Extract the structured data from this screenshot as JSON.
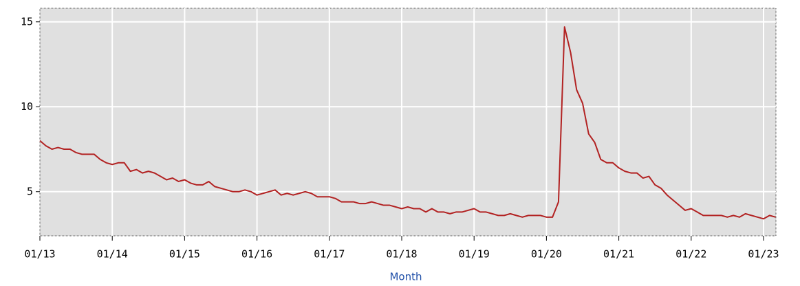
{
  "chart_data": {
    "type": "line",
    "x_label": "Month",
    "categories": [
      "01/13",
      null,
      null,
      null,
      null,
      null,
      null,
      null,
      null,
      null,
      null,
      null,
      "01/14",
      null,
      null,
      null,
      null,
      null,
      null,
      null,
      null,
      null,
      null,
      null,
      "01/15",
      null,
      null,
      null,
      null,
      null,
      null,
      null,
      null,
      null,
      null,
      null,
      "01/16",
      null,
      null,
      null,
      null,
      null,
      null,
      null,
      null,
      null,
      null,
      null,
      "01/17",
      null,
      null,
      null,
      null,
      null,
      null,
      null,
      null,
      null,
      null,
      null,
      "01/18",
      null,
      null,
      null,
      null,
      null,
      null,
      null,
      null,
      null,
      null,
      null,
      "01/19",
      null,
      null,
      null,
      null,
      null,
      null,
      null,
      null,
      null,
      null,
      null,
      "01/20",
      null,
      null,
      null,
      null,
      null,
      null,
      null,
      null,
      null,
      null,
      null,
      "01/21",
      null,
      null,
      null,
      null,
      null,
      null,
      null,
      null,
      null,
      null,
      null,
      "01/22",
      null,
      null,
      null,
      null,
      null,
      null,
      null,
      null,
      null,
      null,
      null,
      "01/23",
      null,
      null
    ],
    "values": [
      8.0,
      7.7,
      7.5,
      7.6,
      7.5,
      7.5,
      7.3,
      7.2,
      7.2,
      7.2,
      6.9,
      6.7,
      6.6,
      6.7,
      6.7,
      6.2,
      6.3,
      6.1,
      6.2,
      6.1,
      5.9,
      5.7,
      5.8,
      5.6,
      5.7,
      5.5,
      5.4,
      5.4,
      5.6,
      5.3,
      5.2,
      5.1,
      5.0,
      5.0,
      5.1,
      5.0,
      4.8,
      4.9,
      5.0,
      5.1,
      4.8,
      4.9,
      4.8,
      4.9,
      5.0,
      4.9,
      4.7,
      4.7,
      4.7,
      4.6,
      4.4,
      4.4,
      4.4,
      4.3,
      4.3,
      4.4,
      4.3,
      4.2,
      4.2,
      4.1,
      4.0,
      4.1,
      4.0,
      4.0,
      3.8,
      4.0,
      3.8,
      3.8,
      3.7,
      3.8,
      3.8,
      3.9,
      4.0,
      3.8,
      3.8,
      3.7,
      3.6,
      3.6,
      3.7,
      3.6,
      3.5,
      3.6,
      3.6,
      3.6,
      3.5,
      3.5,
      4.4,
      14.7,
      13.2,
      11.0,
      10.2,
      8.4,
      7.9,
      6.9,
      6.7,
      6.7,
      6.4,
      6.2,
      6.1,
      6.1,
      5.8,
      5.9,
      5.4,
      5.2,
      4.8,
      4.5,
      4.2,
      3.9,
      4.0,
      3.8,
      3.6,
      3.6,
      3.6,
      3.6,
      3.5,
      3.6,
      3.5,
      3.7,
      3.6,
      3.5,
      3.4,
      3.6,
      3.5
    ],
    "color": "#b22222",
    "ylim": [
      2.4,
      15.8
    ],
    "yticks": [
      5,
      10,
      15
    ],
    "grid": true
  }
}
